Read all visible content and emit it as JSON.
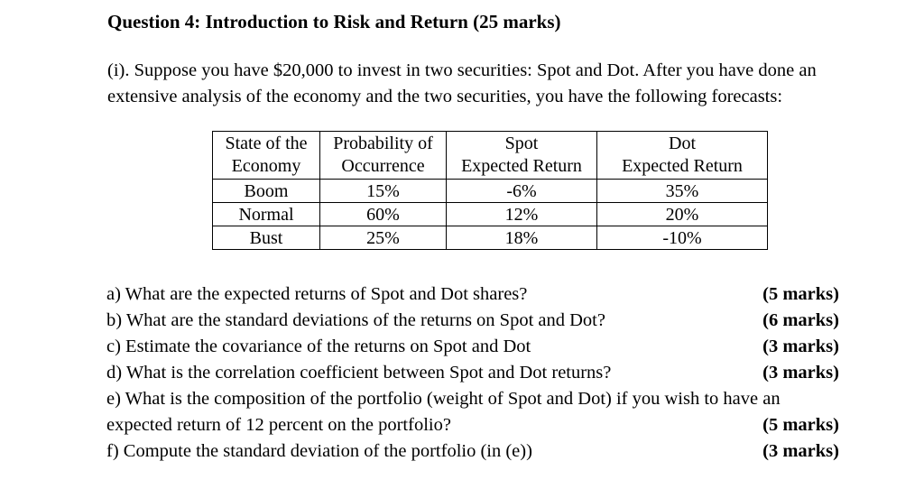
{
  "title": "Question 4: Introduction to Risk and Return (25 marks)",
  "intro": {
    "line1": "(i). Suppose you have $20,000 to invest in two securities: Spot and Dot.  After you have done an",
    "line2": "extensive analysis of the economy and the two securities, you have the following forecasts:"
  },
  "table": {
    "headers": [
      [
        "State of the",
        "Economy"
      ],
      [
        "Probability of",
        "Occurrence"
      ],
      [
        "Spot",
        "Expected Return"
      ],
      [
        "Dot",
        "Expected Return"
      ]
    ],
    "rows": [
      [
        "Boom",
        "15%",
        "-6%",
        "35%"
      ],
      [
        "Normal",
        "60%",
        "12%",
        "20%"
      ],
      [
        "Bust",
        "25%",
        "18%",
        "-10%"
      ]
    ]
  },
  "questions": [
    {
      "text": "a) What are the expected returns of Spot and Dot shares?",
      "marks": "(5 marks)"
    },
    {
      "text": "b) What are the standard deviations of the returns on Spot and Dot?",
      "marks": "(6 marks)"
    },
    {
      "text": "c) Estimate the covariance of the returns on Spot and Dot",
      "marks": "(3 marks)"
    },
    {
      "text": "d) What is the correlation coefficient between Spot and Dot returns?",
      "marks": "(3 marks)"
    },
    {
      "text": "e) What is the composition of the portfolio (weight of Spot and Dot) if you wish to have an",
      "marks": ""
    },
    {
      "text": "expected return of 12 percent on the portfolio?",
      "marks": "(5 marks)"
    },
    {
      "text": "f) Compute the standard deviation of the portfolio (in (e))",
      "marks": "(3 marks)"
    }
  ]
}
